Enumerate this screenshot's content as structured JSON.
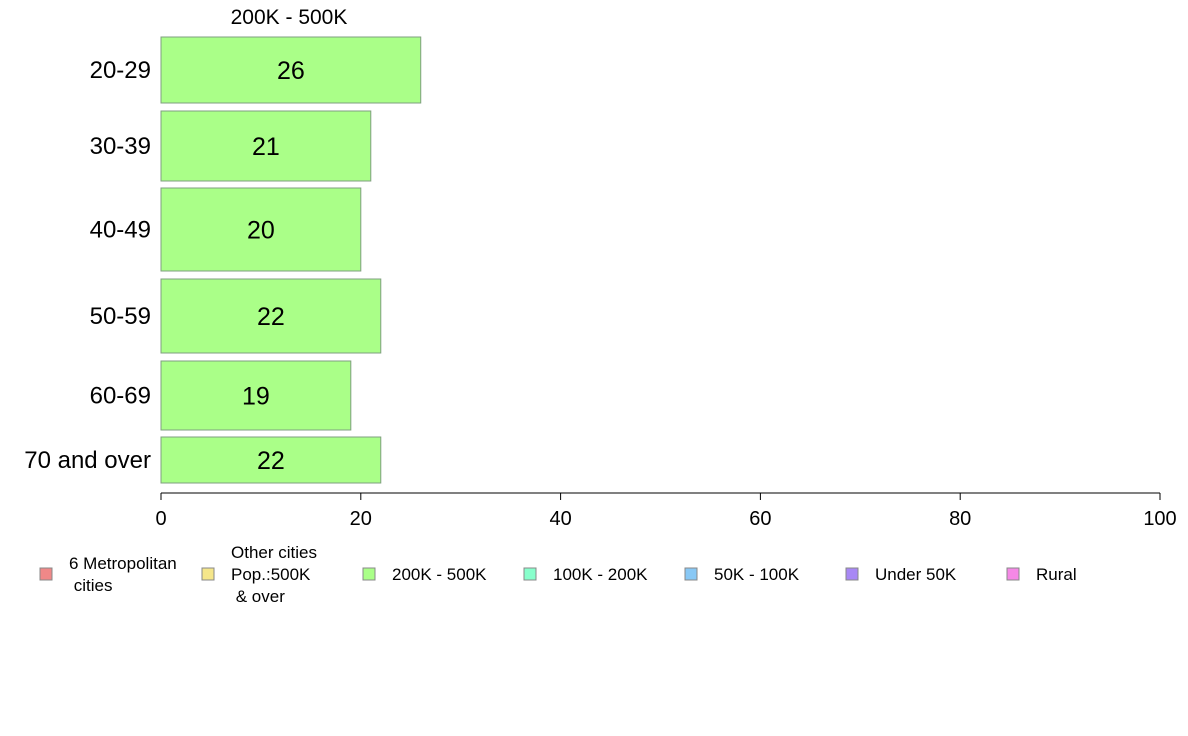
{
  "chart_data": {
    "type": "bar",
    "orientation": "horizontal",
    "title": "200K - 500K",
    "categories": [
      "20-29",
      "30-39",
      "40-49",
      "50-59",
      "60-69",
      "70 and over"
    ],
    "series": [
      {
        "name": "200K - 500K",
        "values": [
          26,
          21,
          20,
          22,
          19,
          22
        ],
        "color": "#aaff88"
      }
    ],
    "xlim": [
      0,
      100
    ],
    "xticks": [
      "0",
      "20",
      "40",
      "60",
      "80",
      "100"
    ],
    "grid": false,
    "legend_position": "bottom",
    "legend": [
      {
        "lines": [
          "6 Metropolitan",
          " cities"
        ],
        "color": "#f08888"
      },
      {
        "lines": [
          "Other cities",
          "Pop.:500K",
          " & over"
        ],
        "color": "#f5e68a"
      },
      {
        "lines": [
          "200K - 500K"
        ],
        "color": "#aaff88"
      },
      {
        "lines": [
          "100K - 200K"
        ],
        "color": "#88ffcc"
      },
      {
        "lines": [
          "50K - 100K"
        ],
        "color": "#88c8f5"
      },
      {
        "lines": [
          "Under 50K"
        ],
        "color": "#a888f5"
      },
      {
        "lines": [
          "Rural"
        ],
        "color": "#f588e6"
      }
    ]
  }
}
